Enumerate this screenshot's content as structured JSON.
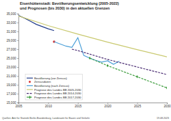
{
  "chart_data": {
    "type": "line",
    "title": [
      "Eisenhüttenstadt: Bevölkerungsentwicklung (2005-2022)",
      "und Prognosen (bis 2030) in den aktuellen Grenzen"
    ],
    "annotations": [
      "Quellen: Amt für Statistik Berlin-Brandenburg, Landesamt für Bauen und Verkehr",
      "19.08.2023"
    ],
    "xlim": [
      2005,
      2030
    ],
    "xticks": [
      2005,
      2010,
      2015,
      2020,
      2025,
      2030
    ],
    "ylim": [
      15000,
      35000
    ],
    "yticks": [
      {
        "value": 15000,
        "label": "15,000"
      },
      {
        "value": 17000,
        "label": "17,000"
      },
      {
        "value": 19000,
        "label": "19,000"
      },
      {
        "value": 21000,
        "label": "21,000"
      },
      {
        "value": 23000,
        "label": "23,000"
      },
      {
        "value": 25000,
        "label": "25,000"
      },
      {
        "value": 27000,
        "label": "27,000"
      },
      {
        "value": 29000,
        "label": "29,000"
      },
      {
        "value": 31000,
        "label": "31,000"
      },
      {
        "value": 33000,
        "label": "33,000"
      },
      {
        "value": 35000,
        "label": "35,000"
      }
    ],
    "grid": false,
    "legend": "lower left",
    "series": [
      {
        "name": "Bevölkerung (vor Zensus)",
        "color": "#1f3a8a",
        "line_style": "solid",
        "x": [
          2005,
          2006,
          2007,
          2008,
          2009,
          2010,
          2011
        ],
        "values": [
          34600,
          34000,
          33300,
          32600,
          32100,
          31600,
          31200
        ]
      },
      {
        "name": "Zensusdaten",
        "color": "#d62728",
        "type": "scatter",
        "marker": "circle",
        "x": [
          2011
        ],
        "values": [
          28700
        ]
      },
      {
        "name": "Bevölkerung (nach Zensus)",
        "color": "#4a9fd8",
        "line_style": "solid",
        "x": [
          2011,
          2012,
          2013,
          2014,
          2015,
          2016,
          2017,
          2018,
          2019,
          2020,
          2021,
          2022
        ],
        "values": [
          28700,
          28200,
          27700,
          27400,
          29600,
          25600,
          25000,
          24500,
          24100,
          24400,
          23600,
          24300
        ]
      },
      {
        "name": "Prognose des Landes BB 2005-2030",
        "color": "#c9c96f",
        "line_style": "solid",
        "x": [
          2005,
          2010,
          2015,
          2020,
          2025,
          2030
        ],
        "values": [
          34500,
          32300,
          30400,
          28600,
          26900,
          25300
        ]
      },
      {
        "name": "Prognose des Landes BB 2014-2030",
        "color": "#4b2d73",
        "line_style": "dashed",
        "x": [
          2014,
          2015,
          2020,
          2025,
          2030
        ],
        "values": [
          27000,
          26700,
          24700,
          23000,
          21300
        ]
      },
      {
        "name": "Prognose des Landes BB 2017-2030",
        "color": "#3c9c3c",
        "line_style": "dashed",
        "marker": "diamond",
        "x": [
          2017,
          2020,
          2025,
          2030
        ],
        "values": [
          25000,
          23300,
          20800,
          18300
        ]
      }
    ]
  }
}
